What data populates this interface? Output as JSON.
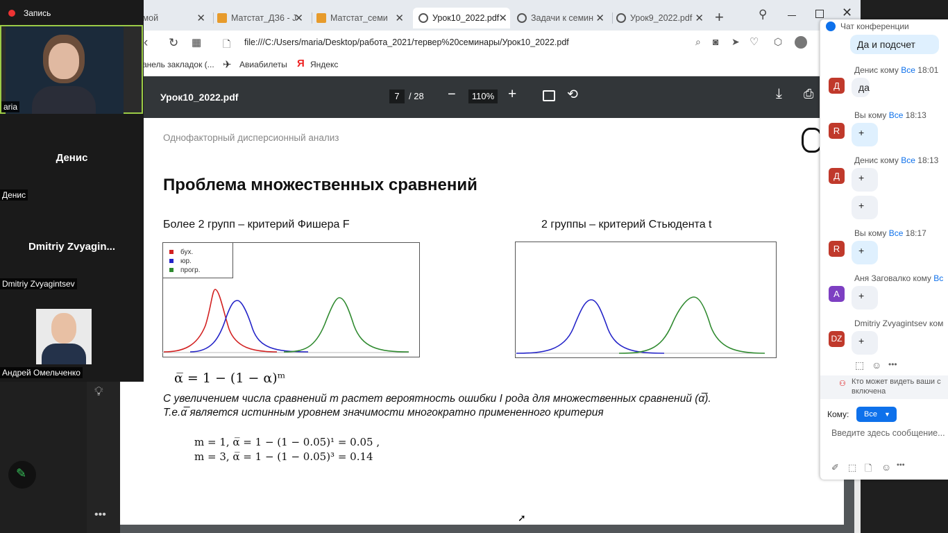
{
  "recording_label": "Запись",
  "participants": [
    {
      "name": "aria",
      "type": "video"
    },
    {
      "name": "Денис",
      "big": "Денис",
      "type": "name"
    },
    {
      "name": "Dmitriy Zvyagintsev",
      "big": "Dmitriy  Zvyagin...",
      "type": "name"
    },
    {
      "name": "Андрей Омельченко",
      "type": "photo"
    }
  ],
  "browser": {
    "tabs": [
      {
        "label": "Домой",
        "icon": "opera-icon"
      },
      {
        "label": "Матстат_ДЗ6 - J",
        "icon": "doc-icon"
      },
      {
        "label": "Матстат_семинар",
        "icon": "doc-icon"
      },
      {
        "label": "Урок10_2022.pdf",
        "icon": "globe-icon",
        "active": true
      },
      {
        "label": "Задачи к семина",
        "icon": "globe-icon"
      },
      {
        "label": "Урок9_2022.pdf",
        "icon": "globe-icon"
      }
    ],
    "url": "file:///C:/Users/maria/Desktop/работа_2021/тервер%20семинары/Урок10_2022.pdf",
    "bookmarks": [
      "анель закладок (...",
      "Авиабилеты",
      "Яндекс"
    ]
  },
  "pdf": {
    "filename": "Урок10_2022.pdf",
    "page_current": "7",
    "page_total": "/ 28",
    "zoom": "110%",
    "breadcrumb": "Однофакторный дисперсионный анализ",
    "title": "Проблема множественных сравнений",
    "left_heading": "Более 2 групп – критерий Фишера F",
    "right_heading": "2 группы – критерий Стьюдента t",
    "legend": [
      "бух.",
      "юр.",
      "прогр."
    ],
    "legend_colors": [
      "#d22020",
      "#2323c8",
      "#2f8a2f"
    ],
    "formula": "α̅ = 1 − (1 − α)ᵐ",
    "text_line1": "С увеличением числа сравнений m растет вероятность ошибки I рода для множественных сравнений (α̅).",
    "text_line2": "Т.е.α̅ является истинным уровнем значимости многократно примененного критерия",
    "example1": "m = 1,  α̅ = 1 − (1 − 0.05)¹ = 0.05 ,",
    "example2": "m = 3,  α̅ = 1 − (1 − 0.05)³ = 0.14"
  },
  "chat": {
    "header": "Чат конференции",
    "first_bubble": "Да и подсчет",
    "messages": [
      {
        "from": "Денис кому",
        "to": "Все",
        "time": "18:01",
        "avatar": "Д",
        "color": "#c0392b",
        "text": "да"
      },
      {
        "from": "Вы кому",
        "to": "Все",
        "time": "18:13",
        "avatar": "R",
        "color": "#c0392b",
        "text": "+"
      },
      {
        "from": "Денис кому",
        "to": "Все",
        "time": "18:13",
        "avatar": "Д",
        "color": "#c0392b",
        "text": "+"
      },
      {
        "extra": "+"
      },
      {
        "from": "Вы кому",
        "to": "Все",
        "time": "18:17",
        "avatar": "R",
        "color": "#c0392b",
        "text": "+"
      },
      {
        "from": "Аня Заговалко кому",
        "to": "Вс",
        "time": "",
        "avatar": "А",
        "color": "#7d3fc2",
        "text": "+"
      },
      {
        "from": "Dmitriy Zvyagintsev ком",
        "to": "",
        "time": "",
        "avatar": "DZ",
        "color": "#c0392b",
        "text": "+"
      }
    ],
    "who_sees": "Кто может видеть ваши с",
    "who_sees2": "включена",
    "to_label": "Кому:",
    "to_value": "Все",
    "input_placeholder": "Введите здесь сообщение..."
  }
}
